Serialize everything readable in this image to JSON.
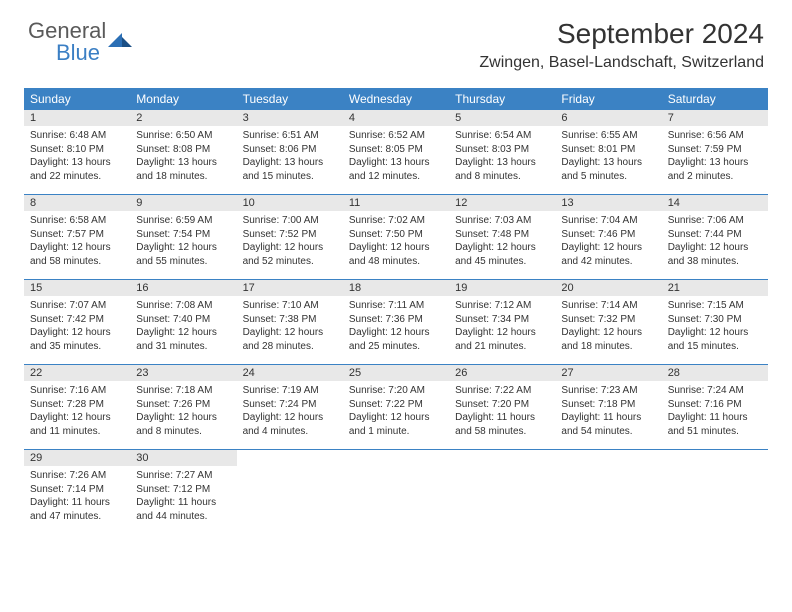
{
  "brand": {
    "name_a": "General",
    "name_b": "Blue",
    "mark_color": "#2b6fb5"
  },
  "title": "September 2024",
  "location": "Zwingen, Basel-Landschaft, Switzerland",
  "colors": {
    "header_bg": "#3b82c4",
    "daynum_bg": "#e8e8e8",
    "rule": "#3b82c4",
    "text": "#333333",
    "page_bg": "#ffffff"
  },
  "fonts": {
    "title_pt": 28,
    "location_pt": 16,
    "dow_pt": 12,
    "daynum_pt": 11,
    "body_pt": 10
  },
  "dow": [
    "Sunday",
    "Monday",
    "Tuesday",
    "Wednesday",
    "Thursday",
    "Friday",
    "Saturday"
  ],
  "weeks": [
    [
      {
        "n": "1",
        "sr": "6:48 AM",
        "ss": "8:10 PM",
        "dl": "13 hours and 22 minutes."
      },
      {
        "n": "2",
        "sr": "6:50 AM",
        "ss": "8:08 PM",
        "dl": "13 hours and 18 minutes."
      },
      {
        "n": "3",
        "sr": "6:51 AM",
        "ss": "8:06 PM",
        "dl": "13 hours and 15 minutes."
      },
      {
        "n": "4",
        "sr": "6:52 AM",
        "ss": "8:05 PM",
        "dl": "13 hours and 12 minutes."
      },
      {
        "n": "5",
        "sr": "6:54 AM",
        "ss": "8:03 PM",
        "dl": "13 hours and 8 minutes."
      },
      {
        "n": "6",
        "sr": "6:55 AM",
        "ss": "8:01 PM",
        "dl": "13 hours and 5 minutes."
      },
      {
        "n": "7",
        "sr": "6:56 AM",
        "ss": "7:59 PM",
        "dl": "13 hours and 2 minutes."
      }
    ],
    [
      {
        "n": "8",
        "sr": "6:58 AM",
        "ss": "7:57 PM",
        "dl": "12 hours and 58 minutes."
      },
      {
        "n": "9",
        "sr": "6:59 AM",
        "ss": "7:54 PM",
        "dl": "12 hours and 55 minutes."
      },
      {
        "n": "10",
        "sr": "7:00 AM",
        "ss": "7:52 PM",
        "dl": "12 hours and 52 minutes."
      },
      {
        "n": "11",
        "sr": "7:02 AM",
        "ss": "7:50 PM",
        "dl": "12 hours and 48 minutes."
      },
      {
        "n": "12",
        "sr": "7:03 AM",
        "ss": "7:48 PM",
        "dl": "12 hours and 45 minutes."
      },
      {
        "n": "13",
        "sr": "7:04 AM",
        "ss": "7:46 PM",
        "dl": "12 hours and 42 minutes."
      },
      {
        "n": "14",
        "sr": "7:06 AM",
        "ss": "7:44 PM",
        "dl": "12 hours and 38 minutes."
      }
    ],
    [
      {
        "n": "15",
        "sr": "7:07 AM",
        "ss": "7:42 PM",
        "dl": "12 hours and 35 minutes."
      },
      {
        "n": "16",
        "sr": "7:08 AM",
        "ss": "7:40 PM",
        "dl": "12 hours and 31 minutes."
      },
      {
        "n": "17",
        "sr": "7:10 AM",
        "ss": "7:38 PM",
        "dl": "12 hours and 28 minutes."
      },
      {
        "n": "18",
        "sr": "7:11 AM",
        "ss": "7:36 PM",
        "dl": "12 hours and 25 minutes."
      },
      {
        "n": "19",
        "sr": "7:12 AM",
        "ss": "7:34 PM",
        "dl": "12 hours and 21 minutes."
      },
      {
        "n": "20",
        "sr": "7:14 AM",
        "ss": "7:32 PM",
        "dl": "12 hours and 18 minutes."
      },
      {
        "n": "21",
        "sr": "7:15 AM",
        "ss": "7:30 PM",
        "dl": "12 hours and 15 minutes."
      }
    ],
    [
      {
        "n": "22",
        "sr": "7:16 AM",
        "ss": "7:28 PM",
        "dl": "12 hours and 11 minutes."
      },
      {
        "n": "23",
        "sr": "7:18 AM",
        "ss": "7:26 PM",
        "dl": "12 hours and 8 minutes."
      },
      {
        "n": "24",
        "sr": "7:19 AM",
        "ss": "7:24 PM",
        "dl": "12 hours and 4 minutes."
      },
      {
        "n": "25",
        "sr": "7:20 AM",
        "ss": "7:22 PM",
        "dl": "12 hours and 1 minute."
      },
      {
        "n": "26",
        "sr": "7:22 AM",
        "ss": "7:20 PM",
        "dl": "11 hours and 58 minutes."
      },
      {
        "n": "27",
        "sr": "7:23 AM",
        "ss": "7:18 PM",
        "dl": "11 hours and 54 minutes."
      },
      {
        "n": "28",
        "sr": "7:24 AM",
        "ss": "7:16 PM",
        "dl": "11 hours and 51 minutes."
      }
    ],
    [
      {
        "n": "29",
        "sr": "7:26 AM",
        "ss": "7:14 PM",
        "dl": "11 hours and 47 minutes."
      },
      {
        "n": "30",
        "sr": "7:27 AM",
        "ss": "7:12 PM",
        "dl": "11 hours and 44 minutes."
      },
      {
        "empty": true
      },
      {
        "empty": true
      },
      {
        "empty": true
      },
      {
        "empty": true
      },
      {
        "empty": true
      }
    ]
  ],
  "labels": {
    "sunrise": "Sunrise:",
    "sunset": "Sunset:",
    "daylight": "Daylight:"
  }
}
